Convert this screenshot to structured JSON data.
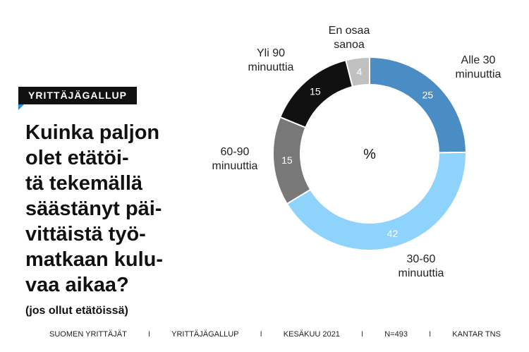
{
  "header": {
    "tag": "YRITTÄJÄGALLUP"
  },
  "title_lines": [
    "Kuinka paljon",
    "olet etätöi-",
    "tä tekemällä",
    "säästänyt päi-",
    "vittäistä työ-",
    "matkaan kulu-",
    "vaa aikaa?"
  ],
  "subtitle": "(jos ollut etätöissä)",
  "footer": {
    "items": [
      "SUOMEN YRITTÄJÄT",
      "YRITTÄJÄGALLUP",
      "KESÄKUU 2021",
      "N=493",
      "KANTAR TNS"
    ],
    "separator": "I"
  },
  "chart_data": {
    "type": "pie",
    "variant": "donut",
    "center_label": "%",
    "slices": [
      {
        "label_lines": [
          "Alle 30",
          "minuuttia"
        ],
        "value": 25,
        "color": "#4a8dc4"
      },
      {
        "label_lines": [
          "30-60",
          "minuuttia"
        ],
        "value": 42,
        "color": "#8ed3fb"
      },
      {
        "label_lines": [
          "60-90",
          "minuuttia"
        ],
        "value": 15,
        "color": "#787878"
      },
      {
        "label_lines": [
          "Yli 90",
          "minuuttia"
        ],
        "value": 15,
        "color": "#111111"
      },
      {
        "label_lines": [
          "En osaa",
          "sanoa"
        ],
        "value": 4,
        "color": "#c0c0c0",
        "label_color": "#8c8c8c"
      }
    ]
  }
}
